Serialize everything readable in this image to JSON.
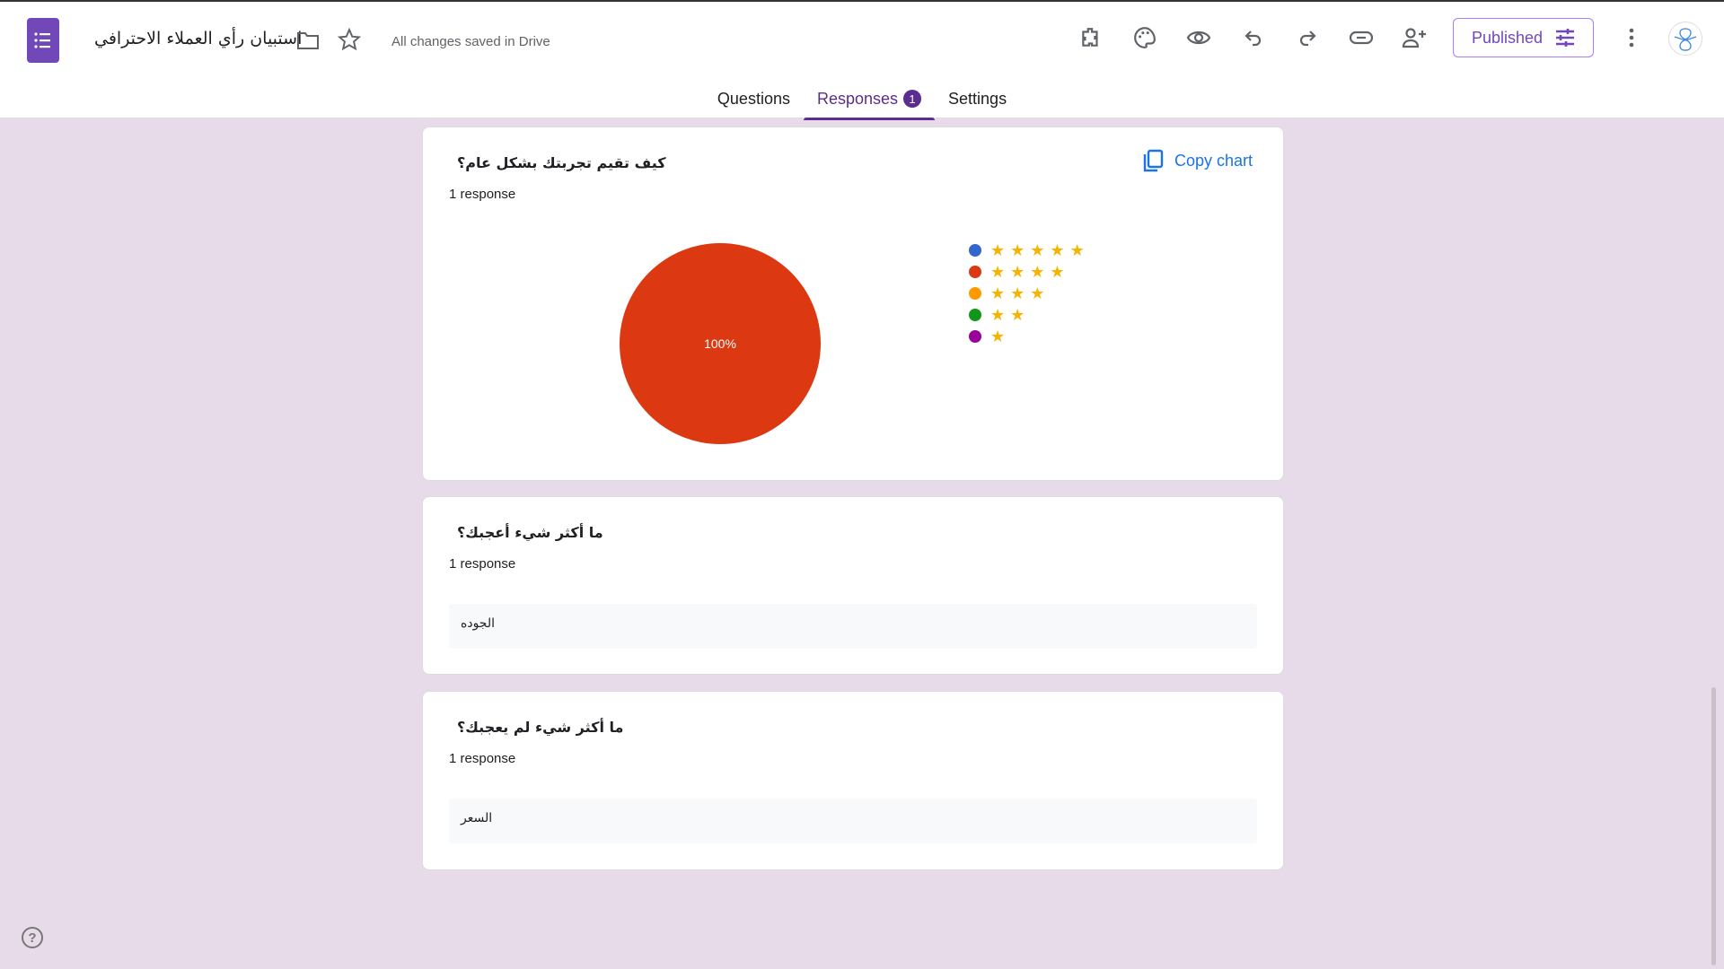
{
  "header": {
    "title": "استبيان رأي العملاء الاحترافي",
    "save_status": "All changes saved in Drive",
    "published_label": "Published"
  },
  "tabs": [
    {
      "label": "Questions"
    },
    {
      "label": "Responses",
      "badge": "1"
    },
    {
      "label": "Settings"
    }
  ],
  "cards": [
    {
      "question": "كيف تقيم تجربتك بشكل عام؟",
      "response_count": "1 response",
      "copy_label": "Copy chart"
    },
    {
      "question": "ما أكثر شيء أعجبك؟",
      "response_count": "1 response",
      "answer": "الجوده"
    },
    {
      "question": "ما أكثر شيء لم يعجبك؟",
      "response_count": "1 response",
      "answer": "السعر"
    }
  ],
  "chart_data": {
    "type": "pie",
    "categories": [
      "5 stars",
      "4 stars",
      "3 stars",
      "2 stars",
      "1 star"
    ],
    "star_counts": [
      5,
      4,
      3,
      2,
      1
    ],
    "values": [
      0,
      1,
      0,
      0,
      0
    ],
    "colors": [
      "#3366cc",
      "#dc3912",
      "#ff9900",
      "#109618",
      "#990099"
    ],
    "slice_labels": [
      "",
      "100%",
      "",
      "",
      ""
    ],
    "legend_placement": "right"
  }
}
